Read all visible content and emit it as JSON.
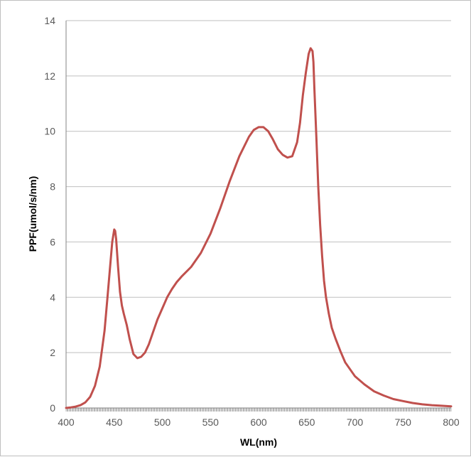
{
  "chart_data": {
    "type": "line",
    "title": "",
    "xlabel": "WL(nm)",
    "ylabel": "PPF(umol/s/nm)",
    "xlim": [
      400,
      800
    ],
    "ylim": [
      0,
      14
    ],
    "x_ticks": [
      400,
      450,
      500,
      550,
      600,
      650,
      700,
      750,
      800
    ],
    "y_ticks": [
      0,
      2,
      4,
      6,
      8,
      10,
      12,
      14
    ],
    "grid": "horizontal",
    "legend": "none",
    "colors": {
      "line": "#c0504d",
      "grid": "#bfbfbf",
      "axis": "#868686"
    },
    "series": [
      {
        "x": [
          400,
          405,
          410,
          415,
          420,
          425,
          430,
          435,
          440,
          443,
          446,
          448,
          450,
          451,
          452,
          454,
          456,
          458,
          460,
          463,
          466,
          470,
          474,
          478,
          482,
          486,
          490,
          495,
          500,
          505,
          510,
          515,
          520,
          530,
          540,
          550,
          560,
          570,
          580,
          590,
          595,
          600,
          605,
          610,
          615,
          620,
          625,
          630,
          635,
          640,
          643,
          646,
          649,
          652,
          654,
          656,
          657,
          658,
          660,
          662,
          664,
          666,
          668,
          670,
          673,
          676,
          680,
          685,
          690,
          700,
          710,
          720,
          730,
          740,
          750,
          760,
          770,
          780,
          790,
          800
        ],
        "y": [
          0.0,
          0.02,
          0.05,
          0.1,
          0.2,
          0.4,
          0.8,
          1.5,
          2.8,
          4.0,
          5.2,
          6.0,
          6.45,
          6.4,
          6.1,
          5.1,
          4.2,
          3.7,
          3.4,
          3.0,
          2.5,
          1.95,
          1.8,
          1.85,
          2.0,
          2.3,
          2.7,
          3.2,
          3.6,
          4.0,
          4.3,
          4.55,
          4.75,
          5.1,
          5.6,
          6.3,
          7.2,
          8.2,
          9.1,
          9.8,
          10.05,
          10.15,
          10.15,
          10.0,
          9.7,
          9.35,
          9.15,
          9.05,
          9.1,
          9.6,
          10.3,
          11.3,
          12.1,
          12.8,
          13.0,
          12.9,
          12.5,
          11.5,
          9.8,
          8.0,
          6.6,
          5.5,
          4.6,
          4.0,
          3.4,
          2.9,
          2.5,
          2.05,
          1.65,
          1.15,
          0.85,
          0.6,
          0.45,
          0.32,
          0.25,
          0.18,
          0.13,
          0.1,
          0.08,
          0.06
        ]
      }
    ]
  }
}
